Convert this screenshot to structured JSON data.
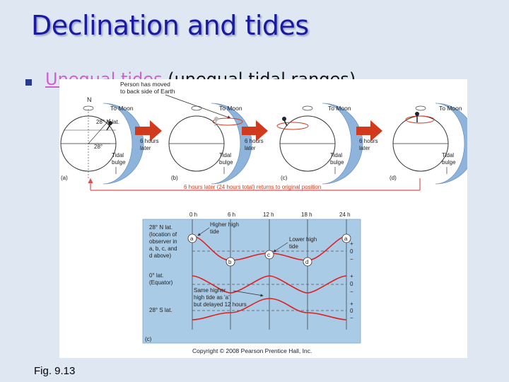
{
  "slide": {
    "title": "Declination and tides",
    "bullet_term": "Unequal tides",
    "bullet_rest": " (unequal tidal ranges)",
    "caption": "Fig. 9.13"
  },
  "figure": {
    "annotation_top": [
      "Person has moved",
      "to back side of Earth"
    ],
    "north_label": "N",
    "lat_label": "28° N lat.",
    "tilt_label": "28°",
    "to_moon": "To Moon",
    "tidal_bulge": [
      "Tidal",
      "bulge"
    ],
    "six_hours": [
      "6 hours",
      "later"
    ],
    "panel_labels": [
      "(a)",
      "(b)",
      "(c)",
      "(d)",
      "(c)"
    ],
    "return_label": "6 hours later (24 hours total) returns to original position",
    "time_ticks": [
      "0 h",
      "6 h",
      "12 h",
      "18 h",
      "24 h"
    ],
    "row_labels": {
      "north": [
        "28° N lat.",
        "(location of",
        "observer in",
        "a, b, c, and",
        "d above)"
      ],
      "equator": [
        "0° lat.",
        "(Equator)"
      ],
      "south": [
        "28° S lat."
      ]
    },
    "annotations": {
      "higher_high": [
        "Higher high",
        "tide"
      ],
      "lower_high": [
        "Lower high",
        "tide"
      ],
      "same_higher": [
        "Same higher",
        "high tide as 'a'",
        "but delayed 12 hours"
      ]
    },
    "scale_marks": [
      "+",
      "0",
      "−"
    ],
    "point_labels": [
      "a",
      "b",
      "c",
      "d",
      "a"
    ],
    "copyright": "Copyright © 2008 Pearson Prentice Hall, Inc.",
    "colors": {
      "bulge": "#8fb4dc",
      "arrow": "#d23a1e",
      "curve": "#e02020",
      "panel_bg": "#a9cbe6",
      "guide": "#e05050"
    }
  }
}
